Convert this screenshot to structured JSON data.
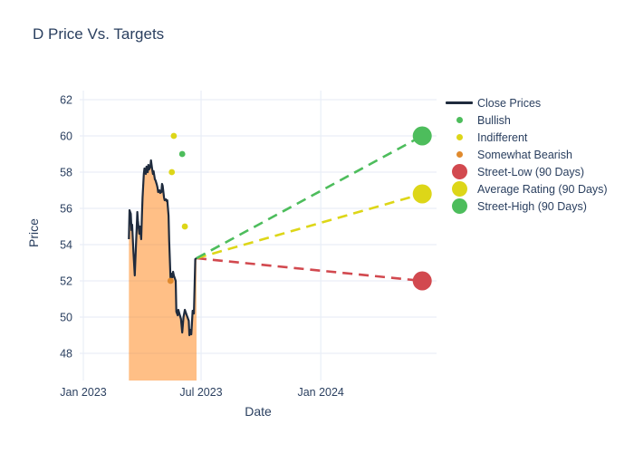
{
  "chart": {
    "title": "D Price Vs. Targets",
    "xlabel": "Date",
    "ylabel": "Price"
  },
  "colors": {
    "text": "#2a3f5f",
    "grid": "#e9eef7",
    "close_line": "#1f2b3d",
    "close_fill": "rgba(255,127,14,0.5)",
    "bullish_green": "#4dbd5c",
    "indifferent_yellow": "#ddd618",
    "bearish_orange": "#e08a2d",
    "street_low_red": "#d2494f"
  },
  "chart_data": {
    "type": "line",
    "title": "D Price Vs. Targets",
    "xlabel": "Date",
    "ylabel": "Price",
    "grid": true,
    "legend_position": "right",
    "text_color": "#2a3f5f",
    "grid_color": "#e9eef7",
    "ylim": [
      46.5,
      62.5
    ],
    "xlim_days": [
      -5.6,
      543
    ],
    "y_ticks": [
      48,
      50,
      52,
      54,
      56,
      58,
      60,
      62
    ],
    "x_ticks": [
      {
        "label": "Jan 2023",
        "date": "2023-01-01"
      },
      {
        "label": "Jul 2023",
        "date": "2023-07-01"
      },
      {
        "label": "Jan 2024",
        "date": "2024-01-01"
      }
    ],
    "close_prices": {
      "name": "Close Prices",
      "color": "#1f2b3d",
      "fill_color": "rgba(255,127,14,0.5)",
      "points": [
        [
          "2023-03-12",
          54.3
        ],
        [
          "2023-03-13",
          55.9
        ],
        [
          "2023-03-15",
          55.7
        ],
        [
          "2023-03-16",
          54.8
        ],
        [
          "2023-03-17",
          55.1
        ],
        [
          "2023-03-19",
          53.6
        ],
        [
          "2023-03-21",
          52.3
        ],
        [
          "2023-03-22",
          53.2
        ],
        [
          "2023-03-24",
          54.9
        ],
        [
          "2023-03-25",
          55.8
        ],
        [
          "2023-03-26",
          55.3
        ],
        [
          "2023-03-28",
          54.6
        ],
        [
          "2023-03-29",
          55.0
        ],
        [
          "2023-03-31",
          54.3
        ],
        [
          "2023-04-01",
          55.6
        ],
        [
          "2023-04-02",
          56.6
        ],
        [
          "2023-04-04",
          57.9
        ],
        [
          "2023-04-05",
          58.2
        ],
        [
          "2023-04-07",
          57.9
        ],
        [
          "2023-04-08",
          58.3
        ],
        [
          "2023-04-10",
          58.0
        ],
        [
          "2023-04-11",
          58.4
        ],
        [
          "2023-04-12",
          58.15
        ],
        [
          "2023-04-14",
          58.3
        ],
        [
          "2023-04-15",
          58.65
        ],
        [
          "2023-04-17",
          58.1
        ],
        [
          "2023-04-18",
          57.9
        ],
        [
          "2023-04-19",
          58.05
        ],
        [
          "2023-04-21",
          57.6
        ],
        [
          "2023-04-22",
          57.55
        ],
        [
          "2023-04-24",
          57.3
        ],
        [
          "2023-04-25",
          57.15
        ],
        [
          "2023-04-26",
          56.9
        ],
        [
          "2023-04-28",
          57.0
        ],
        [
          "2023-04-29",
          56.85
        ],
        [
          "2023-05-01",
          56.9
        ],
        [
          "2023-05-02",
          57.35
        ],
        [
          "2023-05-03",
          57.25
        ],
        [
          "2023-05-05",
          56.6
        ],
        [
          "2023-05-06",
          56.45
        ],
        [
          "2023-05-08",
          56.5
        ],
        [
          "2023-05-09",
          56.4
        ],
        [
          "2023-05-10",
          56.45
        ],
        [
          "2023-05-12",
          55.6
        ],
        [
          "2023-05-13",
          54.2
        ],
        [
          "2023-05-15",
          52.1
        ],
        [
          "2023-05-16",
          52.4
        ],
        [
          "2023-05-18",
          52.2
        ],
        [
          "2023-05-19",
          52.5
        ],
        [
          "2023-05-20",
          52.3
        ],
        [
          "2023-05-23",
          52.0
        ],
        [
          "2023-05-24",
          50.3
        ],
        [
          "2023-05-26",
          50.1
        ],
        [
          "2023-05-27",
          50.4
        ],
        [
          "2023-05-29",
          50.15
        ],
        [
          "2023-05-31",
          49.9
        ],
        [
          "2023-06-02",
          49.15
        ],
        [
          "2023-06-04",
          50.0
        ],
        [
          "2023-06-06",
          50.4
        ],
        [
          "2023-06-09",
          50.1
        ],
        [
          "2023-06-12",
          49.8
        ],
        [
          "2023-06-13",
          49.0
        ],
        [
          "2023-06-15",
          49.3
        ],
        [
          "2023-06-16",
          49.05
        ],
        [
          "2023-06-18",
          50.35
        ],
        [
          "2023-06-20",
          50.2
        ],
        [
          "2023-06-22",
          53.2
        ],
        [
          "2023-06-24",
          53.25
        ]
      ]
    },
    "ratings": [
      {
        "key": "bullish",
        "name": "Bullish",
        "color": "#4dbd5c",
        "points": [
          [
            "2023-06-02",
            59
          ]
        ]
      },
      {
        "key": "indifferent",
        "name": "Indifferent",
        "color": "#ddd618",
        "points": [
          [
            "2023-05-17",
            58
          ],
          [
            "2023-05-20",
            60
          ],
          [
            "2023-06-06",
            55
          ]
        ]
      },
      {
        "key": "somewhat-bearish",
        "name": "Somewhat Bearish",
        "color": "#e08a2d",
        "points": [
          [
            "2023-05-15",
            52
          ]
        ]
      }
    ],
    "targets": {
      "anchor": {
        "date": "2023-06-24",
        "price": 53.25
      },
      "target_date": "2024-06-05",
      "items": [
        {
          "key": "street-low",
          "name": "Street-Low (90 Days)",
          "value": 52,
          "color": "#d2494f"
        },
        {
          "key": "average-rating",
          "name": "Average Rating (90 Days)",
          "value": 56.8,
          "color": "#ddd618"
        },
        {
          "key": "street-high",
          "name": "Street-High (90 Days)",
          "value": 60,
          "color": "#4dbd5c"
        }
      ]
    }
  },
  "legend": {
    "items": [
      {
        "key": "close-prices",
        "label": "Close Prices",
        "symbol": "line",
        "color": "#1f2b3d"
      },
      {
        "key": "bullish",
        "label": "Bullish",
        "symbol": "small-dot",
        "color": "#4dbd5c"
      },
      {
        "key": "indifferent",
        "label": "Indifferent",
        "symbol": "small-dot",
        "color": "#ddd618"
      },
      {
        "key": "somewhat-bearish",
        "label": "Somewhat Bearish",
        "symbol": "small-dot",
        "color": "#e08a2d"
      },
      {
        "key": "street-low",
        "label": "Street-Low (90 Days)",
        "symbol": "big-dot",
        "color": "#d2494f"
      },
      {
        "key": "average-rating",
        "label": "Average Rating (90 Days)",
        "symbol": "big-dot",
        "color": "#ddd618"
      },
      {
        "key": "street-high",
        "label": "Street-High (90 Days)",
        "symbol": "big-dot",
        "color": "#4dbd5c"
      }
    ]
  }
}
